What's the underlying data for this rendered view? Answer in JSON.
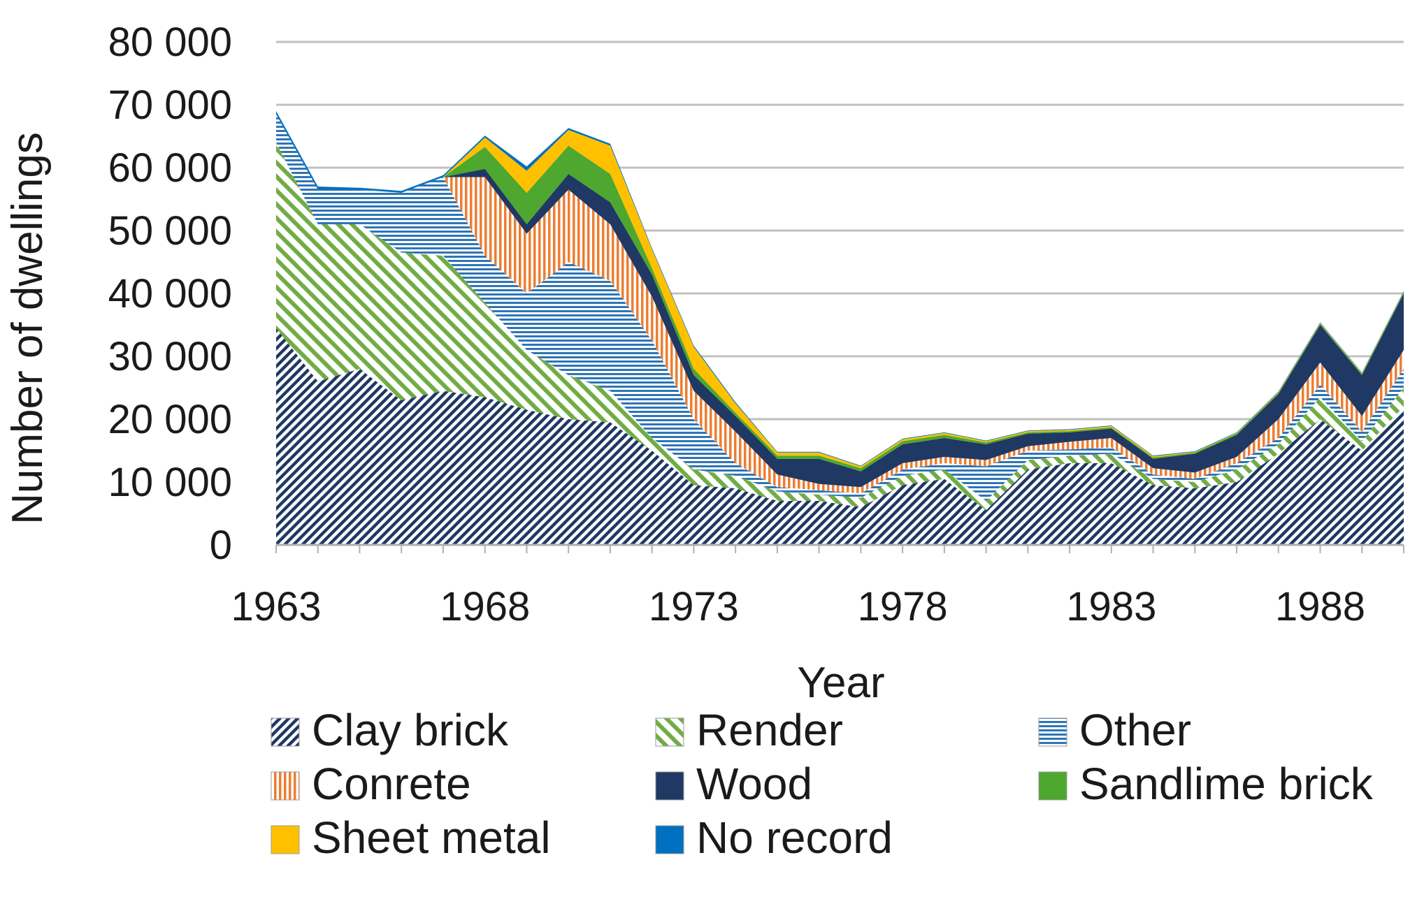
{
  "chart_data": {
    "type": "area",
    "stacked": true,
    "title": "",
    "xlabel": "Year",
    "ylabel": "Number of dwellings",
    "ylim": [
      0,
      80000
    ],
    "xlim": [
      1963,
      1990
    ],
    "y_ticks": [
      {
        "value": 0,
        "label": "0"
      },
      {
        "value": 10000,
        "label": "10 000"
      },
      {
        "value": 20000,
        "label": "20 000"
      },
      {
        "value": 30000,
        "label": "30 000"
      },
      {
        "value": 40000,
        "label": "40 000"
      },
      {
        "value": 50000,
        "label": "50 000"
      },
      {
        "value": 60000,
        "label": "60 000"
      },
      {
        "value": 70000,
        "label": "70 000"
      },
      {
        "value": 80000,
        "label": "80 000"
      }
    ],
    "x_ticks": [
      {
        "value": 1963,
        "label": "1963"
      },
      {
        "value": 1968,
        "label": "1968"
      },
      {
        "value": 1973,
        "label": "1973"
      },
      {
        "value": 1978,
        "label": "1978"
      },
      {
        "value": 1983,
        "label": "1983"
      },
      {
        "value": 1988,
        "label": "1988"
      }
    ],
    "grid": true,
    "legend_position": "bottom",
    "x": [
      1963,
      1964,
      1965,
      1966,
      1967,
      1968,
      1969,
      1970,
      1971,
      1972,
      1973,
      1974,
      1975,
      1976,
      1977,
      1978,
      1979,
      1980,
      1981,
      1982,
      1983,
      1984,
      1985,
      1986,
      1987,
      1988,
      1989,
      1990
    ],
    "series": [
      {
        "name": "Clay brick",
        "color": "#1f3864",
        "pattern": "diag-dense",
        "values": [
          34500,
          26000,
          28000,
          23000,
          24500,
          23500,
          21500,
          20000,
          19500,
          15000,
          9500,
          9000,
          7000,
          7000,
          6000,
          9500,
          10500,
          5500,
          12000,
          13000,
          13000,
          9500,
          9000,
          10000,
          14500,
          20000,
          15000,
          22000
        ]
      },
      {
        "name": "Render",
        "color": "#70ad47",
        "pattern": "diag-wide",
        "values": [
          29500,
          25000,
          23000,
          23500,
          21500,
          15000,
          9500,
          7000,
          5000,
          2000,
          2500,
          2000,
          1500,
          1000,
          1500,
          1500,
          1500,
          1500,
          1500,
          1200,
          1500,
          1000,
          1000,
          2000,
          1500,
          3500,
          1500,
          3000
        ]
      },
      {
        "name": "Other",
        "color": "#2e75b6",
        "pattern": "horiz",
        "values": [
          4500,
          5500,
          5500,
          9500,
          12500,
          7500,
          9000,
          18000,
          17500,
          15500,
          8000,
          2000,
          700,
          700,
          700,
          1000,
          1000,
          5500,
          1500,
          1000,
          1000,
          700,
          500,
          1000,
          1000,
          2000,
          1500,
          3000
        ]
      },
      {
        "name": "Conrete",
        "color": "#ed7d31",
        "pattern": "vert",
        "values": [
          0,
          0,
          0,
          0,
          0,
          12500,
          9500,
          11500,
          9000,
          7000,
          4500,
          5000,
          2000,
          1000,
          1000,
          1000,
          1000,
          1000,
          700,
          1200,
          1500,
          1000,
          1000,
          1000,
          3000,
          3500,
          2500,
          3000
        ]
      },
      {
        "name": "Wood",
        "color": "#1f3864",
        "pattern": "solid",
        "values": [
          0,
          0,
          0,
          0,
          0,
          1300,
          1500,
          2500,
          3500,
          3500,
          2500,
          2500,
          2500,
          4000,
          2500,
          3000,
          3000,
          2500,
          2000,
          1500,
          1500,
          1500,
          3000,
          3500,
          4000,
          6000,
          6500,
          9000
        ]
      },
      {
        "name": "Sandlime brick",
        "color": "#4ea72e",
        "pattern": "solid",
        "values": [
          0,
          0,
          0,
          0,
          0,
          3500,
          5000,
          4500,
          4500,
          1000,
          1000,
          500,
          500,
          500,
          500,
          500,
          500,
          300,
          200,
          200,
          200,
          200,
          200,
          200,
          200,
          200,
          200,
          200
        ]
      },
      {
        "name": "Sheet metal",
        "color": "#ffc000",
        "pattern": "solid",
        "values": [
          0,
          0,
          0,
          0,
          0,
          1500,
          3500,
          2500,
          4500,
          3000,
          3500,
          1500,
          500,
          500,
          300,
          300,
          300,
          200,
          200,
          200,
          200,
          200,
          100,
          100,
          100,
          100,
          100,
          100
        ]
      },
      {
        "name": "No record",
        "color": "#0070c0",
        "pattern": "solid",
        "values": [
          500,
          500,
          300,
          300,
          300,
          300,
          700,
          300,
          300,
          200,
          200,
          200,
          100,
          100,
          100,
          100,
          100,
          100,
          100,
          100,
          100,
          100,
          100,
          100,
          100,
          100,
          100,
          100
        ]
      }
    ]
  }
}
